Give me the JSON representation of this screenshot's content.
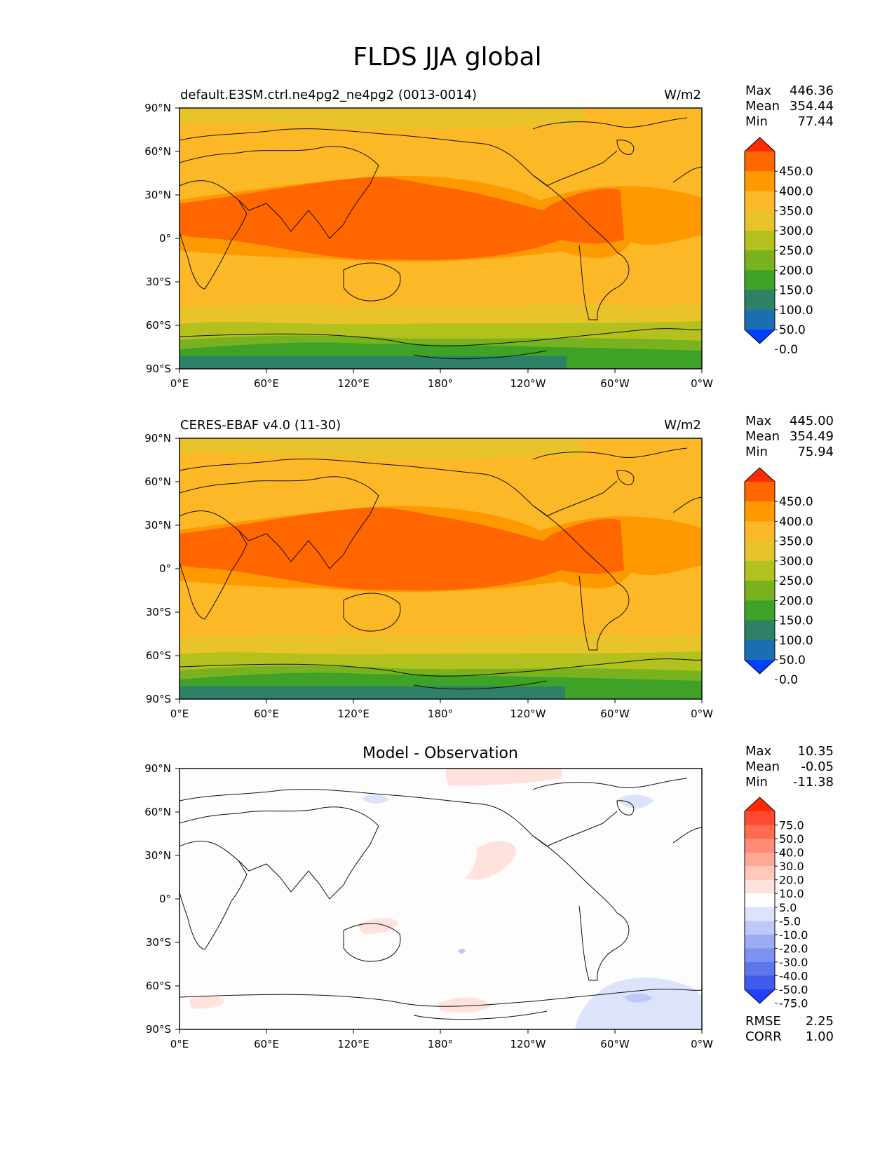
{
  "figure": {
    "title": "FLDS JJA global"
  },
  "panels": [
    {
      "id": "test",
      "title_left": "default.E3SM.ctrl.ne4pg2_ne4pg2 (0013-0014)",
      "title_center": "",
      "units": "W/m2",
      "stats": {
        "max_label": "Max",
        "max": "446.36",
        "mean_label": "Mean",
        "mean": "354.44",
        "min_label": "Min",
        "min": "77.44"
      },
      "colorbar": {
        "labels": [
          "450.0",
          "400.0",
          "350.0",
          "300.0",
          "250.0",
          "200.0",
          "150.0",
          "100.0",
          "50.0",
          "0.0"
        ],
        "colors": [
          "#ff2a00",
          "#ff6600",
          "#ff9900",
          "#fdb828",
          "#e8c42a",
          "#b2c11d",
          "#78b21e",
          "#3ea228",
          "#2f8068",
          "#1b6fb0",
          "#0040ff"
        ]
      },
      "extra_stats": []
    },
    {
      "id": "reference",
      "title_left": "CERES-EBAF v4.0 (11-30)",
      "title_center": "",
      "units": "W/m2",
      "stats": {
        "max_label": "Max",
        "max": "445.00",
        "mean_label": "Mean",
        "mean": "354.49",
        "min_label": "Min",
        "min": "75.94"
      },
      "colorbar": {
        "labels": [
          "450.0",
          "400.0",
          "350.0",
          "300.0",
          "250.0",
          "200.0",
          "150.0",
          "100.0",
          "50.0",
          "0.0"
        ],
        "colors": [
          "#ff2a00",
          "#ff6600",
          "#ff9900",
          "#fdb828",
          "#e8c42a",
          "#b2c11d",
          "#78b21e",
          "#3ea228",
          "#2f8068",
          "#1b6fb0",
          "#0040ff"
        ]
      },
      "extra_stats": []
    },
    {
      "id": "diff",
      "title_left": "",
      "title_center": "Model - Observation",
      "units": "",
      "stats": {
        "max_label": "Max",
        "max": "10.35",
        "mean_label": "Mean",
        "mean": "-0.05",
        "min_label": "Min",
        "min": "-11.38"
      },
      "colorbar": {
        "labels": [
          "75.0",
          "50.0",
          "40.0",
          "30.0",
          "20.0",
          "10.0",
          "5.0",
          "-5.0",
          "-10.0",
          "-20.0",
          "-30.0",
          "-40.0",
          "-50.0",
          "-75.0"
        ],
        "colors": [
          "#ff2a00",
          "#ff4a30",
          "#ff6a50",
          "#ff8a75",
          "#ffa898",
          "#ffc6bb",
          "#ffe2dc",
          "#ffffff",
          "#dde3fb",
          "#bfc9f7",
          "#9eadf3",
          "#7e92f0",
          "#5e76ec",
          "#3f5bea",
          "#1f40ff"
        ]
      },
      "extra_stats": [
        {
          "label": "RMSE",
          "value": "2.25"
        },
        {
          "label": "CORR",
          "value": "1.00"
        }
      ]
    }
  ],
  "axes": {
    "lon_ticks": [
      "0°E",
      "60°E",
      "120°E",
      "180°",
      "120°W",
      "60°W",
      "0°W"
    ],
    "lat_ticks": [
      "90°N",
      "60°N",
      "30°N",
      "0°",
      "30°S",
      "60°S",
      "90°S"
    ]
  },
  "chart_data": [
    {
      "type": "heatmap",
      "title": "default.E3SM.ctrl.ne4pg2_ne4pg2 (0013-0014)",
      "variable": "FLDS",
      "season": "JJA",
      "units": "W/m2",
      "xlim": [
        0,
        360
      ],
      "ylim": [
        -90,
        90
      ],
      "zonal_mean_levels": {
        "lat": [
          85,
          75,
          65,
          55,
          45,
          35,
          25,
          15,
          5,
          -5,
          -15,
          -25,
          -35,
          -45,
          -55,
          -65,
          -75,
          -85
        ],
        "value": [
          275,
          320,
          330,
          340,
          355,
          380,
          405,
          415,
          410,
          395,
          370,
          345,
          330,
          315,
          285,
          245,
          170,
          100
        ]
      },
      "color_levels": [
        0,
        50,
        100,
        150,
        200,
        250,
        300,
        350,
        400,
        450
      ],
      "max": 446.36,
      "mean": 354.44,
      "min": 77.44
    },
    {
      "type": "heatmap",
      "title": "CERES-EBAF v4.0 (11-30)",
      "variable": "FLDS",
      "season": "JJA",
      "units": "W/m2",
      "xlim": [
        0,
        360
      ],
      "ylim": [
        -90,
        90
      ],
      "zonal_mean_levels": {
        "lat": [
          85,
          75,
          65,
          55,
          45,
          35,
          25,
          15,
          5,
          -5,
          -15,
          -25,
          -35,
          -45,
          -55,
          -65,
          -75,
          -85
        ],
        "value": [
          280,
          315,
          330,
          340,
          355,
          380,
          405,
          415,
          410,
          395,
          370,
          345,
          330,
          315,
          285,
          245,
          170,
          100
        ]
      },
      "color_levels": [
        0,
        50,
        100,
        150,
        200,
        250,
        300,
        350,
        400,
        450
      ],
      "max": 445.0,
      "mean": 354.49,
      "min": 75.94
    },
    {
      "type": "heatmap",
      "title": "Model - Observation",
      "variable": "FLDS",
      "season": "JJA",
      "units": "W/m2",
      "xlim": [
        0,
        360
      ],
      "ylim": [
        -90,
        90
      ],
      "color_levels": [
        -75,
        -50,
        -40,
        -30,
        -20,
        -10,
        -5,
        5,
        10,
        20,
        30,
        40,
        50,
        75
      ],
      "max": 10.35,
      "mean": -0.05,
      "min": -11.38,
      "rmse": 2.25,
      "corr": 1.0
    }
  ]
}
